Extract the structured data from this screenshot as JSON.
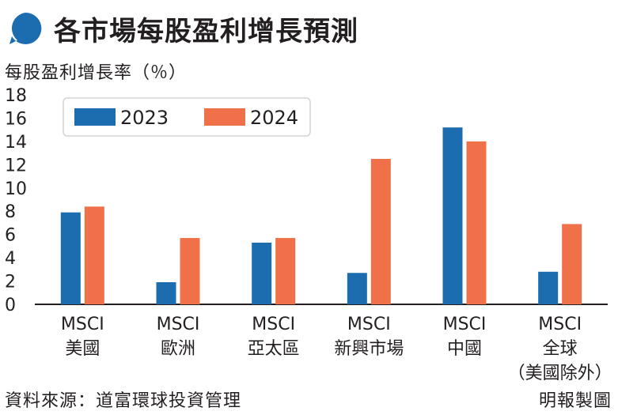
{
  "title": "各市場每股盈利增長預測",
  "source": "資料來源：道富環球投資管理",
  "credit": "明報製圖",
  "colors": {
    "series_2023": "#1c6db0",
    "series_2024": "#ef7049",
    "axis": "#231f20",
    "title_bubble": "#1c6db0"
  },
  "icons": {
    "title": "speech-bubble-icon"
  },
  "chart_data": {
    "type": "bar",
    "ylabel": "每股盈利增長率（％）",
    "ylim": [
      0,
      18
    ],
    "yticks": [
      0,
      2,
      4,
      6,
      8,
      10,
      12,
      14,
      16,
      18
    ],
    "grid": false,
    "legend_position": "top-left",
    "categories": [
      [
        "MSCI",
        "美國"
      ],
      [
        "MSCI",
        "歐洲"
      ],
      [
        "MSCI",
        "亞太區"
      ],
      [
        "MSCI",
        "新興市場"
      ],
      [
        "MSCI",
        "中國"
      ],
      [
        "MSCI",
        "全球",
        "（美國除外）"
      ]
    ],
    "series": [
      {
        "name": "2023",
        "values": [
          7.9,
          1.9,
          5.3,
          2.7,
          15.2,
          2.8
        ]
      },
      {
        "name": "2024",
        "values": [
          8.4,
          5.7,
          5.7,
          12.5,
          14.0,
          6.9
        ]
      }
    ]
  }
}
